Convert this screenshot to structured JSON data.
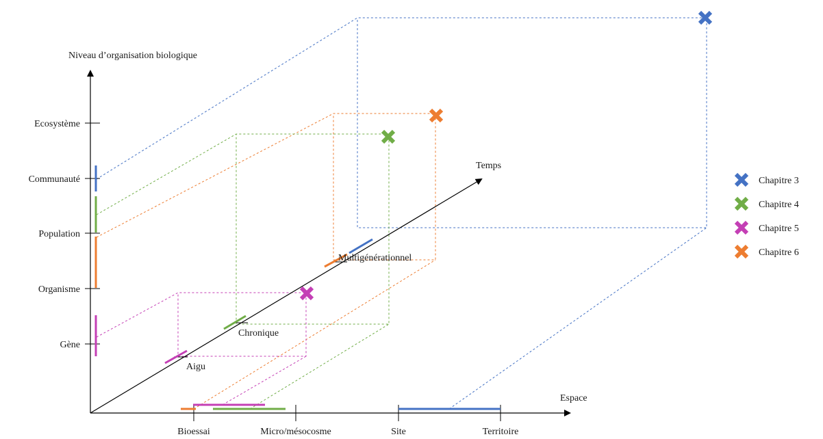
{
  "axes": {
    "y_title": "Niveau d’organisation biologique",
    "x_title": "Espace",
    "t_title": "Temps"
  },
  "y_levels": [
    "Gène",
    "Organisme",
    "Population",
    "Communauté",
    "Ecosystème"
  ],
  "x_levels": [
    "Bioessai",
    "Micro/mésocosme",
    "Site",
    "Territoire"
  ],
  "t_levels": [
    "Aigu",
    "Chronique",
    "Multigénérationnel"
  ],
  "legend": [
    {
      "label": "Chapitre 3",
      "color": "#4472c4",
      "icon": "cross-icon"
    },
    {
      "label": "Chapitre 4",
      "color": "#70ad47",
      "icon": "cross-icon"
    },
    {
      "label": "Chapitre 5",
      "color": "#c43fb5",
      "icon": "cross-icon"
    },
    {
      "label": "Chapitre 6",
      "color": "#ed7d31",
      "icon": "cross-icon"
    }
  ]
}
